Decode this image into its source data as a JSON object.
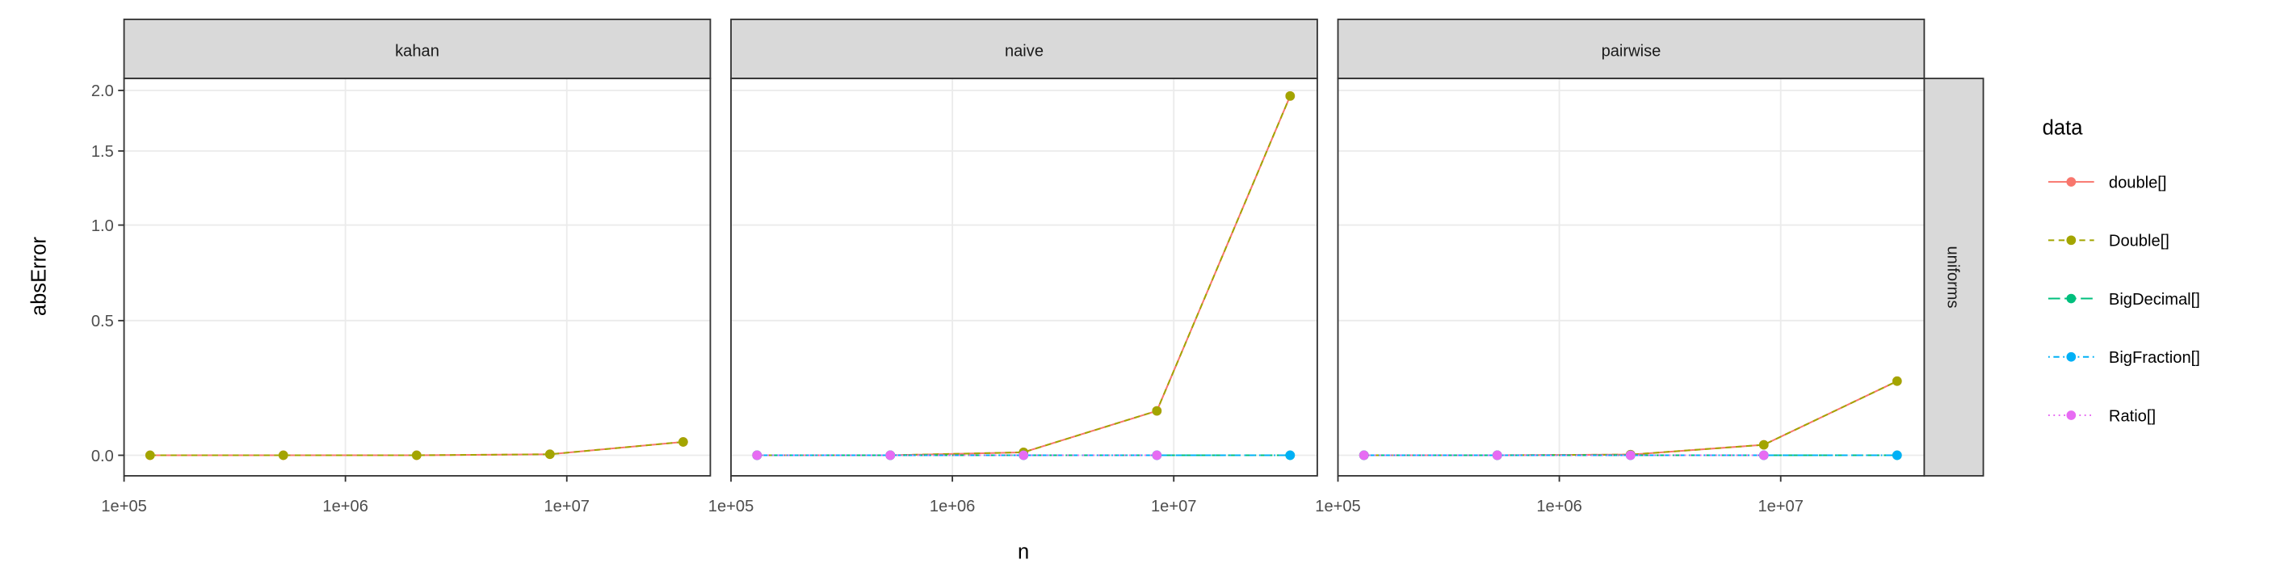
{
  "chart_data": {
    "type": "line",
    "scale_y": "log1p",
    "log_x": true,
    "grid": true,
    "x_label": "n",
    "y_label": "absError",
    "row_facet": "uniforms",
    "legend_title": "data",
    "legend_position": "right",
    "x": [
      131072,
      524288,
      2097152,
      8388608,
      33554432
    ],
    "xlim": [
      100000,
      44500000
    ],
    "xticks": [
      {
        "value": 100000,
        "label": "1e+05"
      },
      {
        "value": 1000000,
        "label": "1e+06"
      },
      {
        "value": 10000000,
        "label": "1e+07"
      }
    ],
    "ylim": [
      -0.06,
      2.11
    ],
    "yticks": [
      {
        "value": 0,
        "label": "0.0"
      },
      0.5,
      {
        "value": 1,
        "label": "1.0"
      },
      1.5,
      {
        "value": 2,
        "label": "2.0"
      }
    ],
    "series": [
      {
        "name": "double[]",
        "color": "#F8766D",
        "linetype": "solid"
      },
      {
        "name": "Double[]",
        "color": "#A3A500",
        "linetype": "dashed"
      },
      {
        "name": "BigDecimal[]",
        "color": "#00BF7D",
        "linetype": "longdash"
      },
      {
        "name": "BigFraction[]",
        "color": "#00B0F6",
        "linetype": "dotdash"
      },
      {
        "name": "Ratio[]",
        "color": "#E76BF3",
        "linetype": "dotted"
      }
    ],
    "panels": [
      {
        "title": "kahan",
        "values": [
          [
            0,
            0,
            0,
            0.003,
            0.041
          ],
          [
            0,
            0,
            0,
            0.003,
            0.041
          ],
          [
            null,
            null,
            null,
            null,
            null
          ],
          [
            null,
            null,
            null,
            null,
            null
          ],
          [
            null,
            null,
            null,
            null,
            null
          ]
        ]
      },
      {
        "title": "naive",
        "values": [
          [
            0,
            0,
            0.009,
            0.143,
            1.95
          ],
          [
            0,
            0,
            0.009,
            0.143,
            1.95
          ],
          [
            0,
            0,
            0,
            0,
            0
          ],
          [
            0,
            0,
            0,
            0,
            0
          ],
          [
            0,
            0,
            0,
            0,
            null
          ]
        ]
      },
      {
        "title": "pairwise",
        "values": [
          [
            0,
            0,
            0.002,
            0.032,
            0.25
          ],
          [
            0,
            0,
            0.002,
            0.032,
            0.25
          ],
          [
            0,
            0,
            0,
            0,
            0
          ],
          [
            0,
            0,
            0,
            0,
            0
          ],
          [
            0,
            0,
            0,
            0,
            null
          ]
        ]
      }
    ]
  }
}
